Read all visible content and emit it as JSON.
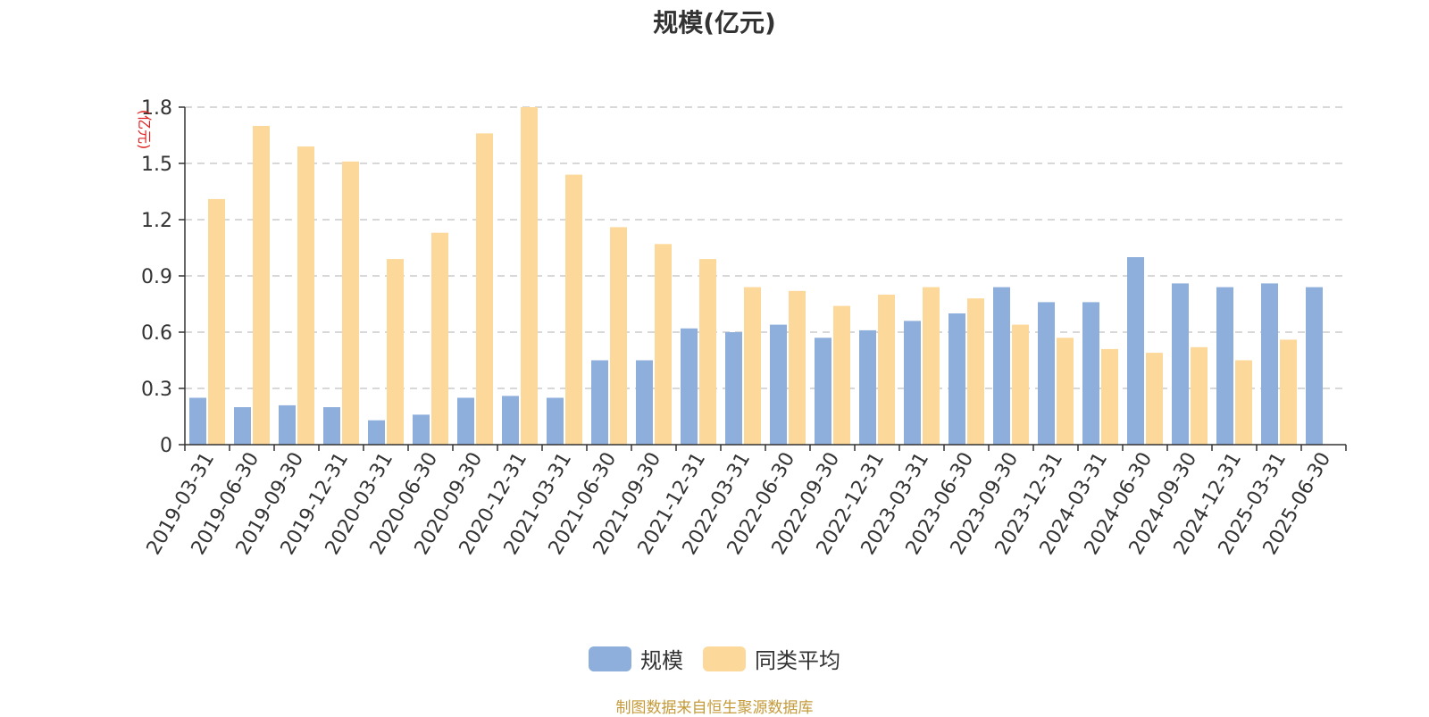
{
  "title": "规模(亿元)",
  "source": "制图数据来自恒生聚源数据库",
  "chart_data": {
    "type": "bar",
    "title": "规模(亿元)",
    "ylabel": "(亿元)",
    "xlabel": "",
    "ylim": [
      0,
      1.8
    ],
    "yticks": [
      "0",
      "0.3",
      "0.6",
      "0.9",
      "1.2",
      "1.5",
      "1.8"
    ],
    "grid": true,
    "legend_position": "bottom",
    "categories": [
      "2019-03-31",
      "2019-06-30",
      "2019-09-30",
      "2019-12-31",
      "2020-03-31",
      "2020-06-30",
      "2020-09-30",
      "2020-12-31",
      "2021-03-31",
      "2021-06-30",
      "2021-09-30",
      "2021-12-31",
      "2022-03-31",
      "2022-06-30",
      "2022-09-30",
      "2022-12-31",
      "2023-03-31",
      "2023-06-30",
      "2023-09-30",
      "2023-12-31",
      "2024-03-31",
      "2024-06-30",
      "2024-09-30",
      "2024-12-31",
      "2025-03-31",
      "2025-06-30"
    ],
    "series": [
      {
        "name": "规模",
        "color": "#8eaedc",
        "values": [
          0.25,
          0.2,
          0.21,
          0.2,
          0.13,
          0.16,
          0.25,
          0.26,
          0.25,
          0.45,
          0.45,
          0.62,
          0.6,
          0.64,
          0.57,
          0.61,
          0.66,
          0.7,
          0.84,
          0.76,
          0.76,
          1.0,
          0.86,
          0.84,
          0.86,
          0.84
        ]
      },
      {
        "name": "同类平均",
        "color": "#fdd89b",
        "values": [
          1.31,
          1.7,
          1.59,
          1.51,
          0.99,
          1.13,
          1.66,
          1.8,
          1.44,
          1.16,
          1.07,
          0.99,
          0.84,
          0.82,
          0.74,
          0.8,
          0.84,
          0.78,
          0.64,
          0.57,
          0.51,
          0.49,
          0.52,
          0.45,
          0.56,
          null
        ]
      }
    ]
  },
  "legend": {
    "items": [
      {
        "label": "规模",
        "color": "#8eaedc"
      },
      {
        "label": "同类平均",
        "color": "#fdd89b"
      }
    ]
  }
}
